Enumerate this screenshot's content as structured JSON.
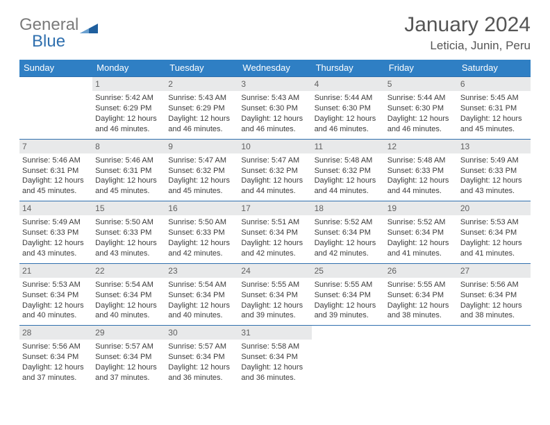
{
  "logo": {
    "text1": "General",
    "text2": "Blue",
    "flag_color": "#1f5f9e"
  },
  "header": {
    "title": "January 2024",
    "subtitle": "Leticia, Junin, Peru"
  },
  "colors": {
    "header_row_bg": "#2f7fc4",
    "header_row_fg": "#ffffff",
    "week_border": "#2f6fae",
    "daynum_bg": "#e8e9ea",
    "daynum_fg": "#606060",
    "cell_fg": "#3b3b3b",
    "page_bg": "#ffffff"
  },
  "weekdays": [
    "Sunday",
    "Monday",
    "Tuesday",
    "Wednesday",
    "Thursday",
    "Friday",
    "Saturday"
  ],
  "weeks": [
    [
      null,
      {
        "n": "1",
        "sr": "Sunrise: 5:42 AM",
        "ss": "Sunset: 6:29 PM",
        "d1": "Daylight: 12 hours",
        "d2": "and 46 minutes."
      },
      {
        "n": "2",
        "sr": "Sunrise: 5:43 AM",
        "ss": "Sunset: 6:29 PM",
        "d1": "Daylight: 12 hours",
        "d2": "and 46 minutes."
      },
      {
        "n": "3",
        "sr": "Sunrise: 5:43 AM",
        "ss": "Sunset: 6:30 PM",
        "d1": "Daylight: 12 hours",
        "d2": "and 46 minutes."
      },
      {
        "n": "4",
        "sr": "Sunrise: 5:44 AM",
        "ss": "Sunset: 6:30 PM",
        "d1": "Daylight: 12 hours",
        "d2": "and 46 minutes."
      },
      {
        "n": "5",
        "sr": "Sunrise: 5:44 AM",
        "ss": "Sunset: 6:30 PM",
        "d1": "Daylight: 12 hours",
        "d2": "and 46 minutes."
      },
      {
        "n": "6",
        "sr": "Sunrise: 5:45 AM",
        "ss": "Sunset: 6:31 PM",
        "d1": "Daylight: 12 hours",
        "d2": "and 45 minutes."
      }
    ],
    [
      {
        "n": "7",
        "sr": "Sunrise: 5:46 AM",
        "ss": "Sunset: 6:31 PM",
        "d1": "Daylight: 12 hours",
        "d2": "and 45 minutes."
      },
      {
        "n": "8",
        "sr": "Sunrise: 5:46 AM",
        "ss": "Sunset: 6:31 PM",
        "d1": "Daylight: 12 hours",
        "d2": "and 45 minutes."
      },
      {
        "n": "9",
        "sr": "Sunrise: 5:47 AM",
        "ss": "Sunset: 6:32 PM",
        "d1": "Daylight: 12 hours",
        "d2": "and 45 minutes."
      },
      {
        "n": "10",
        "sr": "Sunrise: 5:47 AM",
        "ss": "Sunset: 6:32 PM",
        "d1": "Daylight: 12 hours",
        "d2": "and 44 minutes."
      },
      {
        "n": "11",
        "sr": "Sunrise: 5:48 AM",
        "ss": "Sunset: 6:32 PM",
        "d1": "Daylight: 12 hours",
        "d2": "and 44 minutes."
      },
      {
        "n": "12",
        "sr": "Sunrise: 5:48 AM",
        "ss": "Sunset: 6:33 PM",
        "d1": "Daylight: 12 hours",
        "d2": "and 44 minutes."
      },
      {
        "n": "13",
        "sr": "Sunrise: 5:49 AM",
        "ss": "Sunset: 6:33 PM",
        "d1": "Daylight: 12 hours",
        "d2": "and 43 minutes."
      }
    ],
    [
      {
        "n": "14",
        "sr": "Sunrise: 5:49 AM",
        "ss": "Sunset: 6:33 PM",
        "d1": "Daylight: 12 hours",
        "d2": "and 43 minutes."
      },
      {
        "n": "15",
        "sr": "Sunrise: 5:50 AM",
        "ss": "Sunset: 6:33 PM",
        "d1": "Daylight: 12 hours",
        "d2": "and 43 minutes."
      },
      {
        "n": "16",
        "sr": "Sunrise: 5:50 AM",
        "ss": "Sunset: 6:33 PM",
        "d1": "Daylight: 12 hours",
        "d2": "and 42 minutes."
      },
      {
        "n": "17",
        "sr": "Sunrise: 5:51 AM",
        "ss": "Sunset: 6:34 PM",
        "d1": "Daylight: 12 hours",
        "d2": "and 42 minutes."
      },
      {
        "n": "18",
        "sr": "Sunrise: 5:52 AM",
        "ss": "Sunset: 6:34 PM",
        "d1": "Daylight: 12 hours",
        "d2": "and 42 minutes."
      },
      {
        "n": "19",
        "sr": "Sunrise: 5:52 AM",
        "ss": "Sunset: 6:34 PM",
        "d1": "Daylight: 12 hours",
        "d2": "and 41 minutes."
      },
      {
        "n": "20",
        "sr": "Sunrise: 5:53 AM",
        "ss": "Sunset: 6:34 PM",
        "d1": "Daylight: 12 hours",
        "d2": "and 41 minutes."
      }
    ],
    [
      {
        "n": "21",
        "sr": "Sunrise: 5:53 AM",
        "ss": "Sunset: 6:34 PM",
        "d1": "Daylight: 12 hours",
        "d2": "and 40 minutes."
      },
      {
        "n": "22",
        "sr": "Sunrise: 5:54 AM",
        "ss": "Sunset: 6:34 PM",
        "d1": "Daylight: 12 hours",
        "d2": "and 40 minutes."
      },
      {
        "n": "23",
        "sr": "Sunrise: 5:54 AM",
        "ss": "Sunset: 6:34 PM",
        "d1": "Daylight: 12 hours",
        "d2": "and 40 minutes."
      },
      {
        "n": "24",
        "sr": "Sunrise: 5:55 AM",
        "ss": "Sunset: 6:34 PM",
        "d1": "Daylight: 12 hours",
        "d2": "and 39 minutes."
      },
      {
        "n": "25",
        "sr": "Sunrise: 5:55 AM",
        "ss": "Sunset: 6:34 PM",
        "d1": "Daylight: 12 hours",
        "d2": "and 39 minutes."
      },
      {
        "n": "26",
        "sr": "Sunrise: 5:55 AM",
        "ss": "Sunset: 6:34 PM",
        "d1": "Daylight: 12 hours",
        "d2": "and 38 minutes."
      },
      {
        "n": "27",
        "sr": "Sunrise: 5:56 AM",
        "ss": "Sunset: 6:34 PM",
        "d1": "Daylight: 12 hours",
        "d2": "and 38 minutes."
      }
    ],
    [
      {
        "n": "28",
        "sr": "Sunrise: 5:56 AM",
        "ss": "Sunset: 6:34 PM",
        "d1": "Daylight: 12 hours",
        "d2": "and 37 minutes."
      },
      {
        "n": "29",
        "sr": "Sunrise: 5:57 AM",
        "ss": "Sunset: 6:34 PM",
        "d1": "Daylight: 12 hours",
        "d2": "and 37 minutes."
      },
      {
        "n": "30",
        "sr": "Sunrise: 5:57 AM",
        "ss": "Sunset: 6:34 PM",
        "d1": "Daylight: 12 hours",
        "d2": "and 36 minutes."
      },
      {
        "n": "31",
        "sr": "Sunrise: 5:58 AM",
        "ss": "Sunset: 6:34 PM",
        "d1": "Daylight: 12 hours",
        "d2": "and 36 minutes."
      },
      null,
      null,
      null
    ]
  ]
}
